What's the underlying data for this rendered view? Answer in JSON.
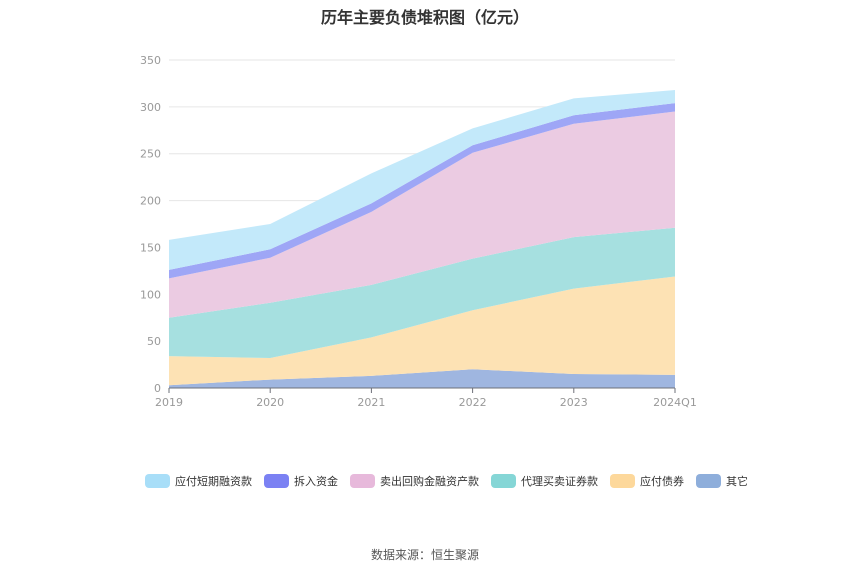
{
  "chart_data": {
    "type": "area",
    "stacked": true,
    "title": "历年主要负债堆积图（亿元）",
    "categories": [
      "2019",
      "2020",
      "2021",
      "2022",
      "2023",
      "2024Q1"
    ],
    "ylim": [
      0,
      350
    ],
    "yticks": [
      0,
      50,
      100,
      150,
      200,
      250,
      300,
      350
    ],
    "grid": true,
    "legend_position": "bottom",
    "series": [
      {
        "name": "其它",
        "color": "#9fb6e0",
        "values": [
          3,
          9,
          13,
          20,
          15,
          14
        ]
      },
      {
        "name": "应付债券",
        "color": "#fde2b4",
        "values": [
          31,
          23,
          41,
          63,
          91,
          105
        ]
      },
      {
        "name": "代理买卖证券款",
        "color": "#a6e0e0",
        "values": [
          41,
          59,
          56,
          55,
          55,
          52
        ]
      },
      {
        "name": "卖出回购金融资产款",
        "color": "#ebcbe2",
        "values": [
          42,
          48,
          78,
          113,
          121,
          124
        ]
      },
      {
        "name": "拆入资金",
        "color": "#9ea6f6",
        "values": [
          9,
          9,
          9,
          8,
          9,
          9
        ]
      },
      {
        "name": "应付短期融资款",
        "color": "#c3e9fa",
        "values": [
          32,
          27,
          32,
          18,
          18,
          14
        ]
      }
    ]
  },
  "legend": [
    {
      "name": "应付短期融资款",
      "color": "#a8def8"
    },
    {
      "name": "拆入资金",
      "color": "#7b81f3"
    },
    {
      "name": "卖出回购金融资产款",
      "color": "#e7b9db"
    },
    {
      "name": "代理买卖证券款",
      "color": "#85d6d6"
    },
    {
      "name": "应付债券",
      "color": "#fdd89b"
    },
    {
      "name": "其它",
      "color": "#8eaedb"
    }
  ],
  "source": "数据来源：恒生聚源"
}
